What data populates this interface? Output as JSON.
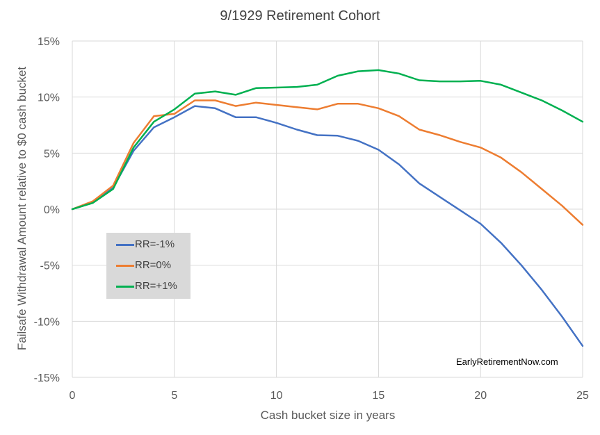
{
  "chart_data": {
    "type": "line",
    "title": "9/1929 Retirement Cohort",
    "xlabel": "Cash bucket size in years",
    "ylabel": "Failsafe Withdrawal Amount relative to $0 cash bucket",
    "xlim": [
      0,
      25
    ],
    "ylim": [
      -15,
      15
    ],
    "x_ticks": [
      0,
      5,
      10,
      15,
      20,
      25
    ],
    "y_ticks": [
      -15,
      -10,
      -5,
      0,
      5,
      10,
      15
    ],
    "y_tick_labels": [
      "-15%",
      "-10%",
      "-5%",
      "0%",
      "5%",
      "10%",
      "15%"
    ],
    "grid": "vertical and horizontal",
    "legend_position": "center-left",
    "watermark": "EarlyRetirementNow.com",
    "x": [
      0,
      1,
      2,
      3,
      4,
      5,
      6,
      7,
      8,
      9,
      10,
      11,
      12,
      13,
      14,
      15,
      16,
      17,
      18,
      19,
      20,
      21,
      22,
      23,
      24,
      25
    ],
    "series": [
      {
        "name": "RR=-1%",
        "color": "#4472c4",
        "values": [
          0,
          0.6,
          1.9,
          5.2,
          7.3,
          8.2,
          9.2,
          9.0,
          8.2,
          8.2,
          7.7,
          7.1,
          6.6,
          6.55,
          6.1,
          5.3,
          4.0,
          2.3,
          1.1,
          -0.1,
          -1.3,
          -3.0,
          -5.0,
          -7.2,
          -9.6,
          -12.2
        ]
      },
      {
        "name": "RR=0%",
        "color": "#ed7d31",
        "values": [
          0,
          0.7,
          2.1,
          5.9,
          8.3,
          8.5,
          9.7,
          9.7,
          9.2,
          9.5,
          9.3,
          9.1,
          8.9,
          9.4,
          9.4,
          9.0,
          8.3,
          7.1,
          6.6,
          6.0,
          5.5,
          4.6,
          3.3,
          1.8,
          0.3,
          -1.4
        ]
      },
      {
        "name": "RR=+1%",
        "color": "#00b050",
        "values": [
          0,
          0.55,
          1.8,
          5.5,
          7.8,
          8.9,
          10.3,
          10.5,
          10.2,
          10.8,
          10.85,
          10.9,
          11.1,
          11.9,
          12.3,
          12.4,
          12.1,
          11.5,
          11.4,
          11.4,
          11.45,
          11.1,
          10.4,
          9.7,
          8.8,
          7.8
        ]
      }
    ]
  }
}
